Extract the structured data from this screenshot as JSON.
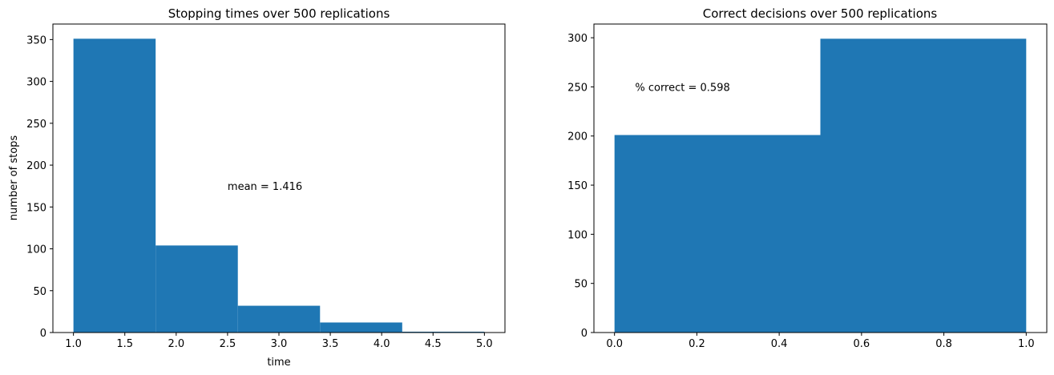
{
  "chart_data": [
    {
      "type": "bar",
      "title": "Stopping times over 500 replications",
      "xlabel": "time",
      "ylabel": "number of stops",
      "bin_edges": [
        1.0,
        1.8,
        2.6,
        3.4,
        4.2,
        5.0
      ],
      "values": [
        351,
        104,
        32,
        12,
        1
      ],
      "xlim": [
        0.8,
        5.2
      ],
      "ylim": [
        0,
        368.55
      ],
      "xticks": [
        "1.0",
        "1.5",
        "2.0",
        "2.5",
        "3.0",
        "3.5",
        "4.0",
        "4.5",
        "5.0"
      ],
      "xtick_values": [
        1.0,
        1.5,
        2.0,
        2.5,
        3.0,
        3.5,
        4.0,
        4.5,
        5.0
      ],
      "yticks": [
        "0",
        "50",
        "100",
        "150",
        "200",
        "250",
        "300",
        "350"
      ],
      "ytick_values": [
        0,
        50,
        100,
        150,
        200,
        250,
        300,
        350
      ],
      "annotation": {
        "text": "mean = 1.416",
        "x": 2.5,
        "y": 175
      },
      "color": "#1f77b4"
    },
    {
      "type": "bar",
      "title": "Correct decisions over 500 replications",
      "xlabel": "",
      "ylabel": "",
      "bin_edges": [
        0.0,
        0.5,
        1.0
      ],
      "values": [
        201,
        299
      ],
      "xlim": [
        -0.05,
        1.05
      ],
      "ylim": [
        0,
        313.95
      ],
      "xticks": [
        "0.0",
        "0.2",
        "0.4",
        "0.6",
        "0.8",
        "1.0"
      ],
      "xtick_values": [
        0.0,
        0.2,
        0.4,
        0.6,
        0.8,
        1.0
      ],
      "yticks": [
        "0",
        "50",
        "100",
        "150",
        "200",
        "250",
        "300"
      ],
      "ytick_values": [
        0,
        50,
        100,
        150,
        200,
        250,
        300
      ],
      "annotation": {
        "text": "% correct = 0.598",
        "x": 0.05,
        "y": 250
      },
      "color": "#1f77b4"
    }
  ]
}
